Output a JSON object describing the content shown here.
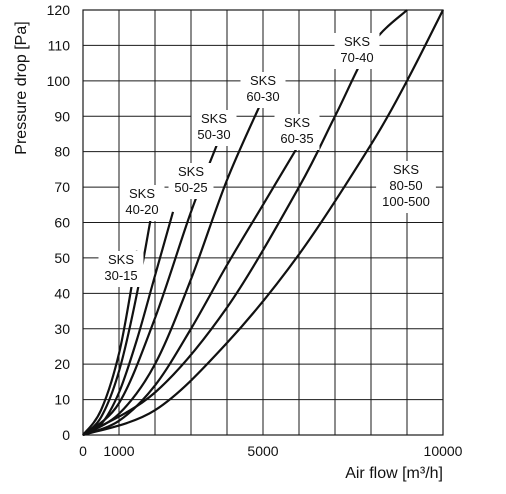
{
  "chart_data": {
    "type": "line",
    "xlabel": "Air flow [m³/h]",
    "ylabel": "Pressure drop  [Pa]",
    "xlim": [
      0,
      10000
    ],
    "ylim": [
      0,
      120
    ],
    "x_ticks": [
      0,
      1000,
      5000,
      10000
    ],
    "y_ticks": [
      0,
      10,
      20,
      30,
      40,
      50,
      60,
      70,
      80,
      90,
      100,
      110,
      120
    ],
    "grid": true,
    "legend": "none",
    "series": [
      {
        "name": "SKS 30-15",
        "label_lines": [
          "SKS",
          "30-15"
        ],
        "values": [
          [
            0,
            0
          ],
          [
            500,
            7
          ],
          [
            1000,
            23
          ],
          [
            1400,
            45
          ],
          [
            1500,
            52
          ]
        ]
      },
      {
        "name": "SKS 40-20",
        "label_lines": [
          "SKS",
          "40-20"
        ],
        "values": [
          [
            0,
            0
          ],
          [
            500,
            5
          ],
          [
            1000,
            18
          ],
          [
            1500,
            40
          ],
          [
            2000,
            68
          ]
        ]
      },
      {
        "name": "SKS 50-25",
        "label_lines": [
          "SKS",
          "50-25"
        ],
        "values": [
          [
            0,
            0
          ],
          [
            500,
            3
          ],
          [
            1000,
            12
          ],
          [
            1500,
            27
          ],
          [
            2000,
            45
          ],
          [
            2500,
            63
          ]
        ]
      },
      {
        "name": "SKS 50-30",
        "label_lines": [
          "SKS",
          "50-30"
        ],
        "values": [
          [
            0,
            0
          ],
          [
            1000,
            9
          ],
          [
            2000,
            33
          ],
          [
            3000,
            63
          ],
          [
            3800,
            84
          ]
        ]
      },
      {
        "name": "SKS 60-30",
        "label_lines": [
          "SKS",
          "60-30"
        ],
        "values": [
          [
            0,
            0
          ],
          [
            1000,
            6
          ],
          [
            2000,
            20
          ],
          [
            3000,
            44
          ],
          [
            4000,
            72
          ],
          [
            5000,
            95
          ]
        ]
      },
      {
        "name": "SKS 60-35",
        "label_lines": [
          "SKS",
          "60-35"
        ],
        "values": [
          [
            0,
            0
          ],
          [
            1000,
            4
          ],
          [
            2000,
            14
          ],
          [
            3000,
            30
          ],
          [
            4000,
            48
          ],
          [
            5000,
            65
          ],
          [
            6000,
            82
          ]
        ]
      },
      {
        "name": "SKS 70-40",
        "label_lines": [
          "SKS",
          "70-40"
        ],
        "values": [
          [
            0,
            0
          ],
          [
            2000,
            12
          ],
          [
            4000,
            36
          ],
          [
            6000,
            70
          ],
          [
            7000,
            90
          ],
          [
            8000,
            110
          ],
          [
            9000,
            120
          ]
        ]
      },
      {
        "name": "SKS 80-50 100-500",
        "label_lines": [
          "SKS",
          "80-50",
          "100-500"
        ],
        "values": [
          [
            0,
            0
          ],
          [
            2000,
            7
          ],
          [
            4000,
            26
          ],
          [
            6000,
            51
          ],
          [
            8000,
            82
          ],
          [
            9000,
            100
          ],
          [
            10000,
            120
          ]
        ]
      }
    ]
  }
}
